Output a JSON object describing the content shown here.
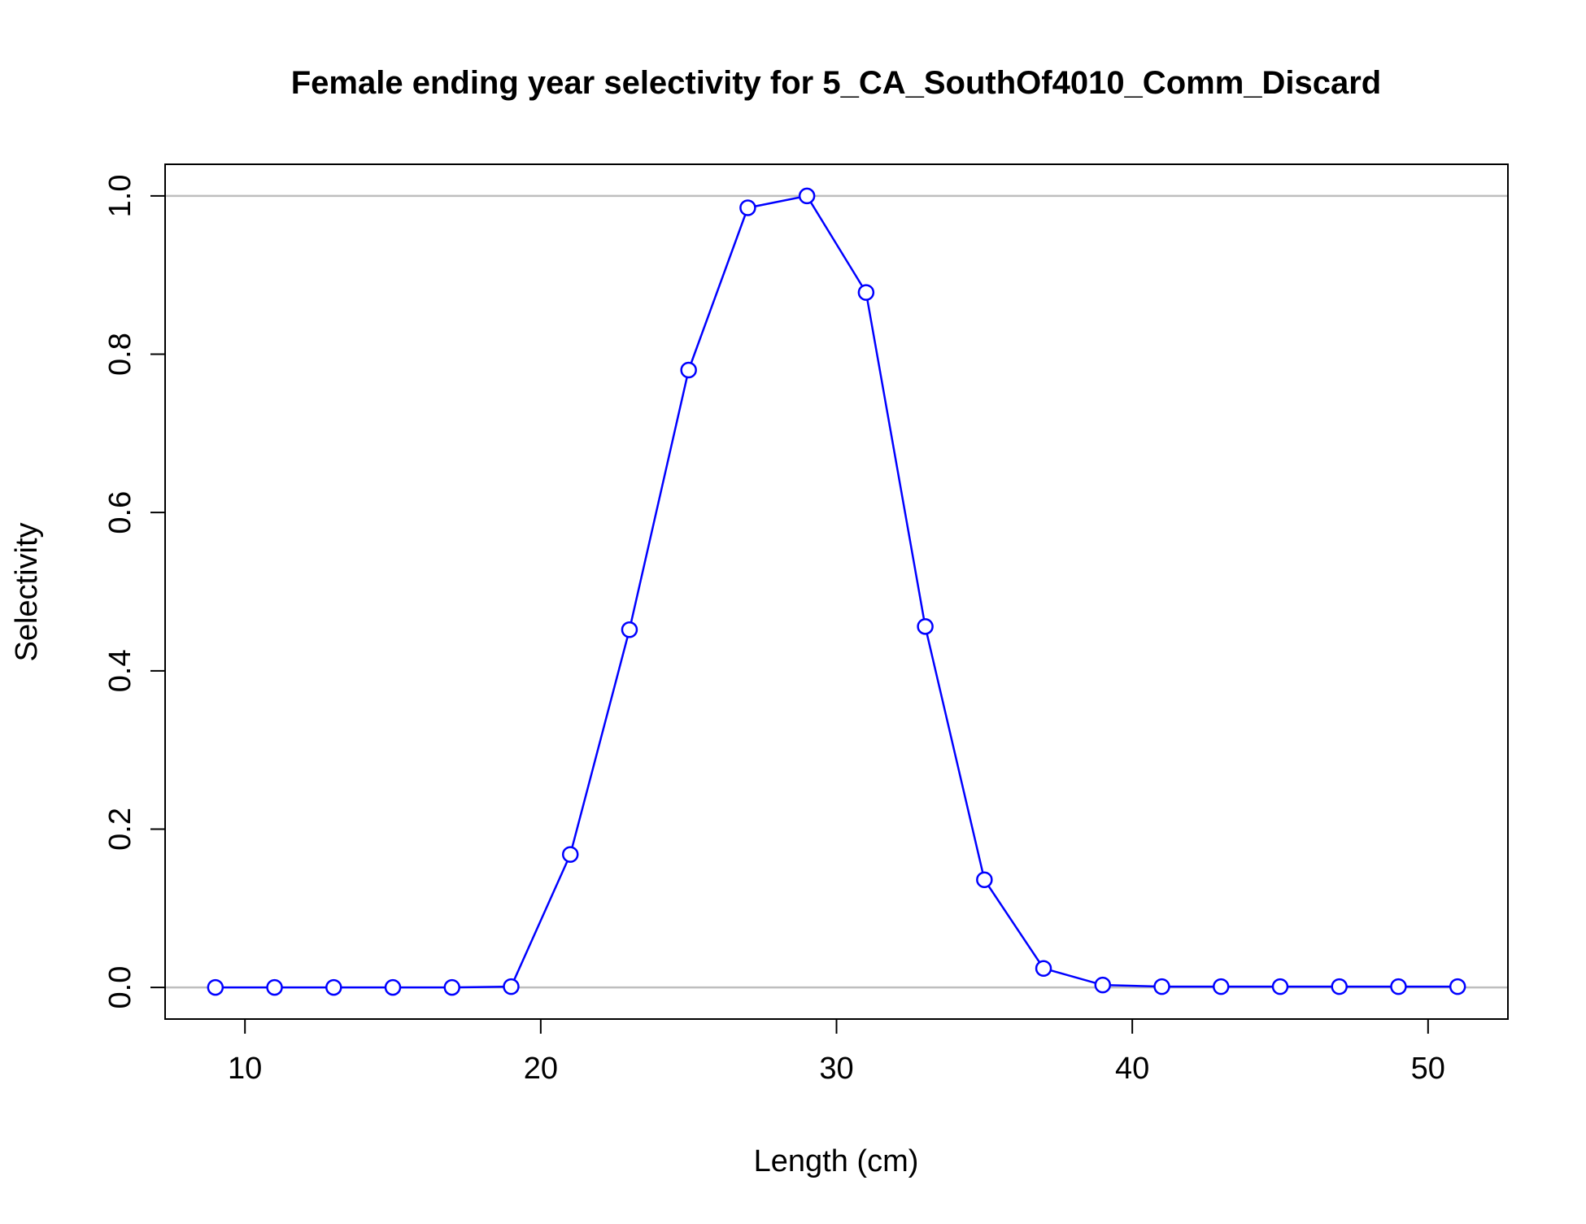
{
  "chart_data": {
    "type": "line",
    "title": "Female ending year selectivity for 5_CA_SouthOf4010_Comm_Discard",
    "xlabel": "Length (cm)",
    "ylabel": "Selectivity",
    "xlim": [
      7.3,
      52.7
    ],
    "ylim": [
      -0.04,
      1.04
    ],
    "x_ticks": [
      10,
      20,
      30,
      40,
      50
    ],
    "y_ticks": [
      0.0,
      0.2,
      0.4,
      0.6,
      0.8,
      1.0
    ],
    "x_tick_labels": [
      "10",
      "20",
      "30",
      "40",
      "50"
    ],
    "y_tick_labels": [
      "0.0",
      "0.2",
      "0.4",
      "0.6",
      "0.8",
      "1.0"
    ],
    "reference_lines_y": [
      0,
      1
    ],
    "grid": false,
    "marker": "open-circle",
    "series": [
      {
        "color": "#0000ff",
        "x": [
          9,
          11,
          13,
          15,
          17,
          19,
          21,
          23,
          25,
          27,
          29,
          31,
          33,
          35,
          37,
          39,
          41,
          43,
          45,
          47,
          49,
          51
        ],
        "y": [
          0.0,
          0.0,
          0.0,
          0.0,
          0.0,
          0.001,
          0.168,
          0.452,
          0.78,
          0.985,
          1.0,
          0.878,
          0.456,
          0.136,
          0.024,
          0.003,
          0.001,
          0.001,
          0.001,
          0.001,
          0.001,
          0.001
        ]
      }
    ],
    "colors": {
      "series": "#0000ff",
      "reference": "#bebebe",
      "frame": "#000000"
    }
  }
}
